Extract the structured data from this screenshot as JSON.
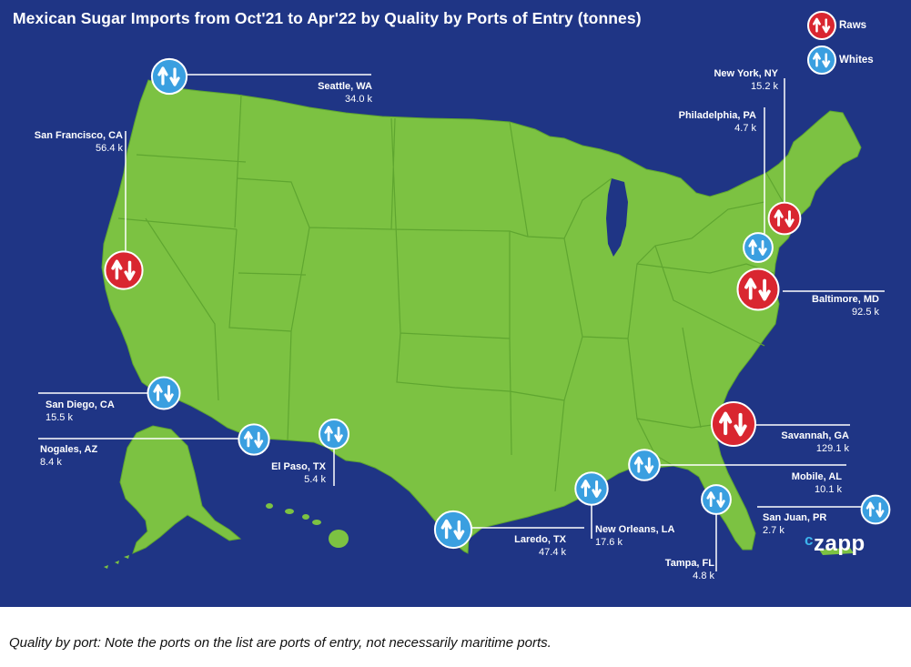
{
  "title": "Mexican Sugar Imports from Oct'21 to Apr'22 by Quality by Ports of Entry (tonnes)",
  "legend": {
    "raws": "Raws",
    "whites": "Whites"
  },
  "colors": {
    "background": "#1f3585",
    "land": "#7cc242",
    "raws": "#d92630",
    "whites": "#3a9fe0"
  },
  "ports": [
    {
      "name": "Seattle, WA",
      "value": "34.0 k",
      "quality": "Whites"
    },
    {
      "name": "San Francisco, CA",
      "value": "56.4 k",
      "quality": "Raws"
    },
    {
      "name": "San Diego, CA",
      "value": "15.5 k",
      "quality": "Whites"
    },
    {
      "name": "Nogales, AZ",
      "value": "8.4 k",
      "quality": "Whites"
    },
    {
      "name": "El Paso, TX",
      "value": "5.4 k",
      "quality": "Whites"
    },
    {
      "name": "Laredo, TX",
      "value": "47.4 k",
      "quality": "Whites"
    },
    {
      "name": "New Orleans, LA",
      "value": "17.6 k",
      "quality": "Whites"
    },
    {
      "name": "Tampa, FL",
      "value": "4.8 k",
      "quality": "Whites"
    },
    {
      "name": "Mobile, AL",
      "value": "10.1 k",
      "quality": "Whites"
    },
    {
      "name": "Savannah, GA",
      "value": "129.1 k",
      "quality": "Raws"
    },
    {
      "name": "Baltimore, MD",
      "value": "92.5 k",
      "quality": "Raws"
    },
    {
      "name": "Philadelphia, PA",
      "value": "4.7 k",
      "quality": "Whites"
    },
    {
      "name": "New York, NY",
      "value": "15.2 k",
      "quality": "Raws"
    },
    {
      "name": "San Juan, PR",
      "value": "2.7 k",
      "quality": "Whites"
    }
  ],
  "brand": {
    "prefix": "c",
    "name": "zapp"
  },
  "caption": "Quality by port: Note the ports on the list are ports of entry, not necessarily maritime ports."
}
